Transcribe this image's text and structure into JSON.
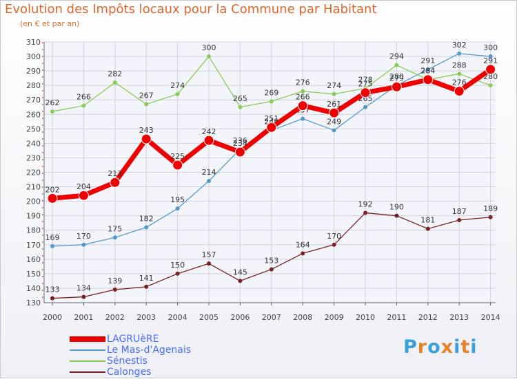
{
  "header": {
    "title": "Evolution des Impôts locaux pour la Commune par Habitant",
    "subtitle": "(en € et par an)"
  },
  "logo": {
    "letters": [
      "P",
      "r",
      "o",
      "x",
      "i",
      "t",
      "i"
    ],
    "colors": [
      "#3aa0d8",
      "#e8822a",
      "#3aa0d8",
      "#e8822a",
      "#3aa0d8",
      "#e8822a",
      "#3aa0d8"
    ]
  },
  "legend": [
    {
      "label": "LAGRUèRE",
      "color": "#ee0000"
    },
    {
      "label": "Le Mas-d'Agenais",
      "color": "#5599cc"
    },
    {
      "label": "Sénestis",
      "color": "#88cc55"
    },
    {
      "label": "Calonges",
      "color": "#772222"
    }
  ],
  "chart_data": {
    "type": "line",
    "x": [
      "2000",
      "2001",
      "2002",
      "2003",
      "2004",
      "2005",
      "2006",
      "2007",
      "2008",
      "2009",
      "2010",
      "2011",
      "2012",
      "2013",
      "2014"
    ],
    "ylim": [
      130,
      310
    ],
    "yticks": [
      130,
      140,
      150,
      160,
      170,
      180,
      190,
      200,
      210,
      220,
      230,
      240,
      250,
      260,
      270,
      280,
      290,
      300,
      310
    ],
    "grid": true,
    "legend_position": "bottom-left",
    "series": [
      {
        "name": "Calonges",
        "color": "#772222",
        "values": [
          133,
          134,
          139,
          141,
          150,
          157,
          145,
          153,
          164,
          170,
          192,
          190,
          181,
          187,
          189
        ]
      },
      {
        "name": "Le Mas-d'Agenais",
        "color": "#5599cc",
        "values": [
          169,
          170,
          175,
          182,
          195,
          214,
          236,
          249,
          257,
          249,
          265,
          280,
          291,
          302,
          300
        ]
      },
      {
        "name": "Sénestis",
        "color": "#88cc55",
        "values": [
          262,
          266,
          282,
          267,
          274,
          300,
          265,
          269,
          276,
          274,
          278,
          294,
          284,
          288,
          280
        ]
      },
      {
        "name": "LAGRUèRE",
        "color": "#ee0000",
        "values": [
          202,
          204,
          213,
          243,
          225,
          242,
          234,
          251,
          266,
          261,
          275,
          279,
          284,
          276,
          291
        ]
      }
    ]
  }
}
